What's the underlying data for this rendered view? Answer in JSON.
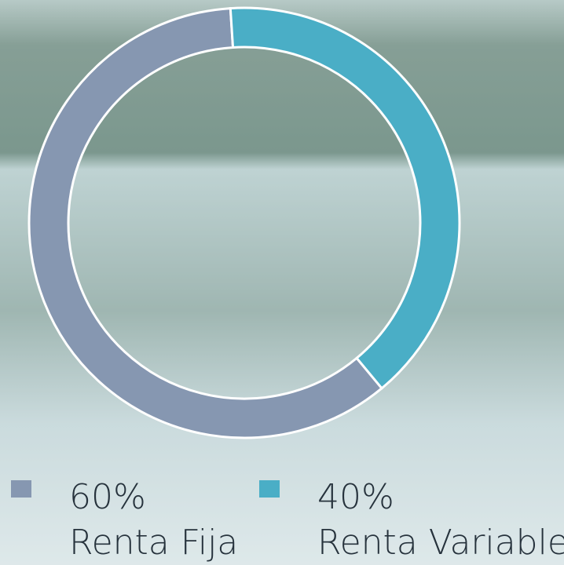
{
  "chart_data": {
    "type": "donut",
    "categories": [
      "Renta Fija",
      "Renta Variable"
    ],
    "values": [
      60,
      40
    ],
    "value_labels": [
      "60%",
      "40%"
    ],
    "colors": [
      "#8697b1",
      "#4aaec6"
    ]
  }
}
